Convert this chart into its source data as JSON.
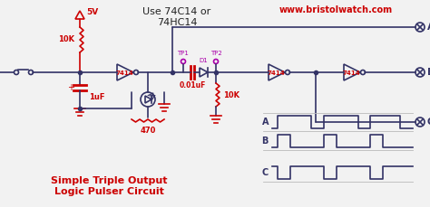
{
  "title": "Simple Triple Output\nLogic Pulser Circuit",
  "title_color": "#cc0000",
  "subtitle": "Use 74C14 or\n74HC14",
  "subtitle_color": "#222222",
  "website": "www.bristolwatch.com",
  "website_color": "#cc0000",
  "bg_color": "#f2f2f2",
  "circuit_color": "#333366",
  "red_color": "#cc0000",
  "magenta_color": "#aa00aa",
  "fig_width": 4.74,
  "fig_height": 2.29,
  "dpi": 100
}
